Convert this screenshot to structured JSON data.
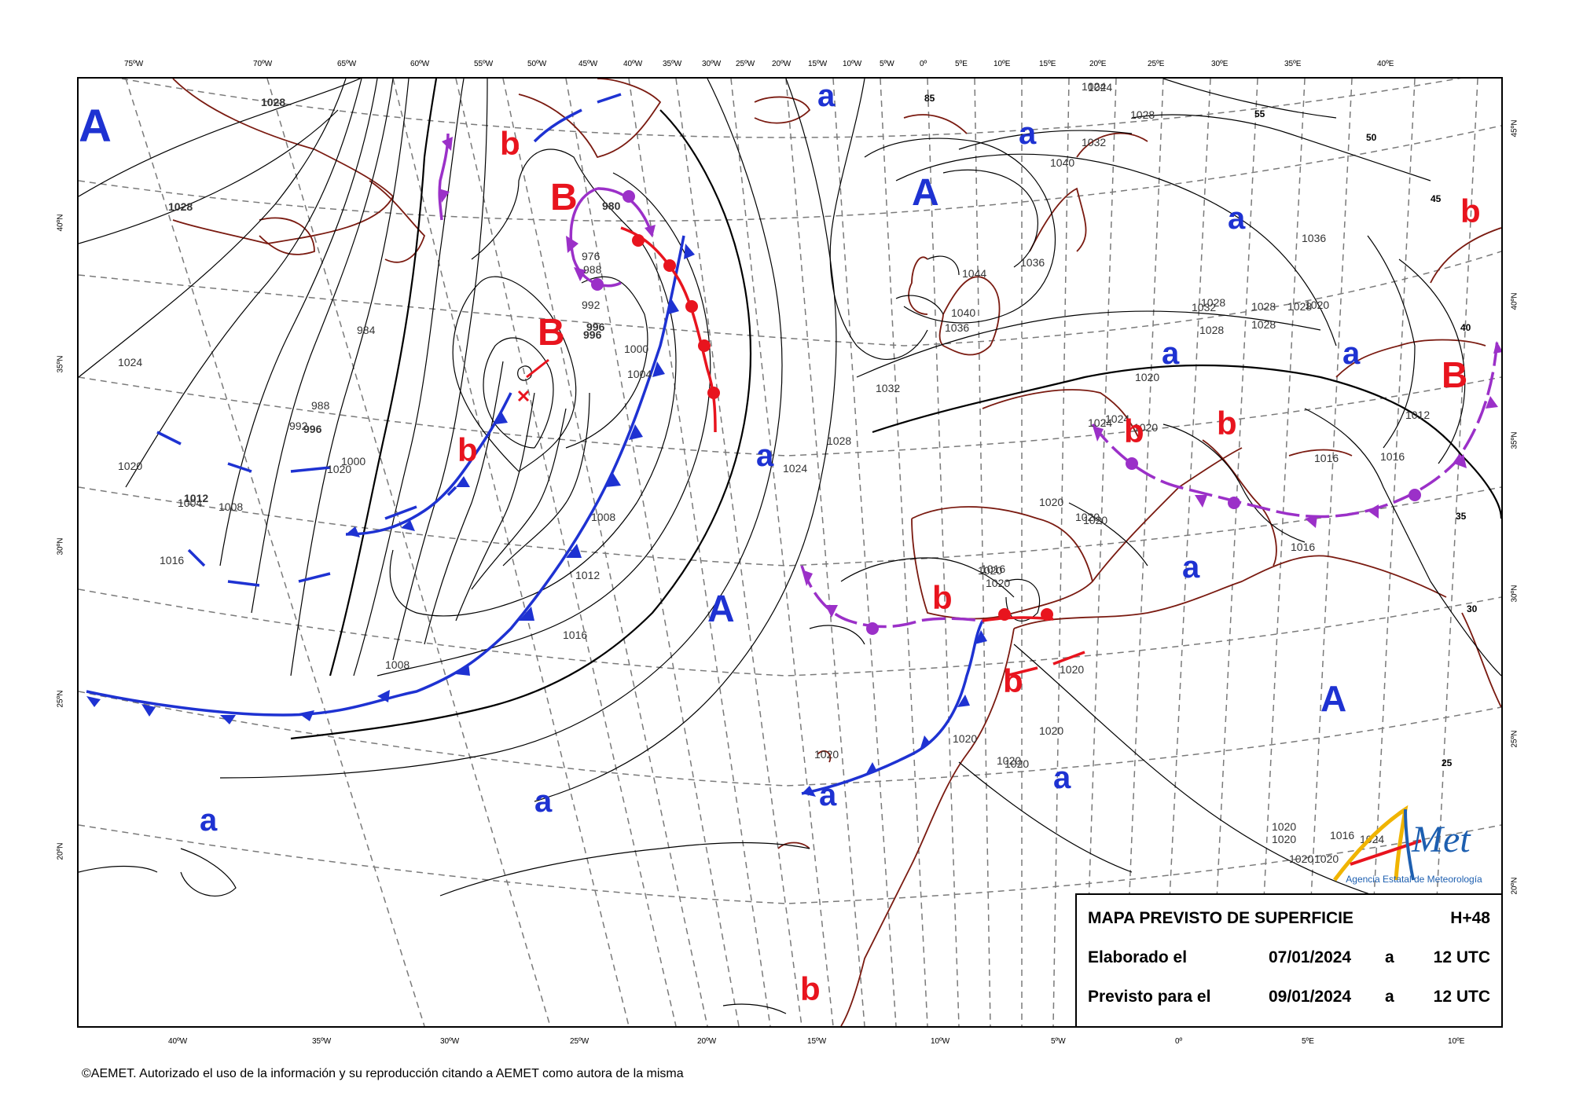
{
  "map_title": "MAPA PREVISTO DE SUPERFICIE",
  "forecast_step": "H+48",
  "rows": [
    {
      "label": "Elaborado el",
      "date": "07/01/2024",
      "sep": "a",
      "time": "12 UTC"
    },
    {
      "label": "Previsto para el",
      "date": "09/01/2024",
      "sep": "a",
      "time": "12 UTC"
    }
  ],
  "footer": "©AEMET. Autorizado el uso de la información y su reproducción citando a AEMET como autora de la misma",
  "logo": {
    "text": "AEmet",
    "subtitle": "Agencia Estatal de Meteorología"
  },
  "top_longitudes": [
    "75ºW",
    "70ºW",
    "65ºW",
    "60ºW",
    "55ºW",
    "50ºW",
    "45ºW",
    "40ºW",
    "35ºW",
    "30ºW",
    "25ºW",
    "20ºW",
    "15ºW",
    "10ºW",
    "5ºW",
    "0º",
    "5ºE",
    "10ºE",
    "15ºE",
    "20ºE",
    "25ºE",
    "30ºE",
    "35ºE",
    "40ºE"
  ],
  "bottom_longitudes": [
    "40ºW",
    "35ºW",
    "30ºW",
    "25ºW",
    "20ºW",
    "15ºW",
    "10ºW",
    "5ºW",
    "0º",
    "5ºE",
    "10ºE"
  ],
  "left_latitudes": [
    "40ºN",
    "35ºN",
    "30ºN",
    "25ºN",
    "20ºN"
  ],
  "right_latitudes": [
    "45ºN",
    "40ºN",
    "35ºN",
    "30ºN",
    "25ºN",
    "20ºN"
  ],
  "pressure_centers": [
    {
      "symbol": "A",
      "kind": "high"
    },
    {
      "symbol": "A",
      "kind": "high"
    },
    {
      "symbol": "A",
      "kind": "high"
    },
    {
      "symbol": "A",
      "kind": "high"
    },
    {
      "symbol": "a",
      "kind": "high"
    },
    {
      "symbol": "a",
      "kind": "high"
    },
    {
      "symbol": "a",
      "kind": "high"
    },
    {
      "symbol": "a",
      "kind": "high"
    },
    {
      "symbol": "a",
      "kind": "high"
    },
    {
      "symbol": "a",
      "kind": "high"
    },
    {
      "symbol": "a",
      "kind": "high"
    },
    {
      "symbol": "a",
      "kind": "high"
    },
    {
      "symbol": "a",
      "kind": "high"
    },
    {
      "symbol": "a",
      "kind": "high"
    },
    {
      "symbol": "a",
      "kind": "high"
    },
    {
      "symbol": "B",
      "kind": "low"
    },
    {
      "symbol": "B",
      "kind": "low"
    },
    {
      "symbol": "B",
      "kind": "low"
    },
    {
      "symbol": "b",
      "kind": "low"
    },
    {
      "symbol": "b",
      "kind": "low"
    },
    {
      "symbol": "b",
      "kind": "low"
    },
    {
      "symbol": "b",
      "kind": "low"
    },
    {
      "symbol": "b",
      "kind": "low"
    },
    {
      "symbol": "b",
      "kind": "low"
    },
    {
      "symbol": "b",
      "kind": "low"
    },
    {
      "symbol": "b",
      "kind": "low"
    }
  ],
  "isobar_labels": [
    "1028",
    "1028",
    "1024",
    "1020",
    "1016",
    "1012",
    "1008",
    "1004",
    "1000",
    "996",
    "996",
    "992",
    "988",
    "984",
    "980",
    "976",
    "988",
    "992",
    "996",
    "1000",
    "1004",
    "1008",
    "1012",
    "1016",
    "1008",
    "1020",
    "1024",
    "1028",
    "1032",
    "1036",
    "1040",
    "1044",
    "1036",
    "1040",
    "1024",
    "1028",
    "1032",
    "1036",
    "1032",
    "1028",
    "1028",
    "1028",
    "1028",
    "1028",
    "1020",
    "1024",
    "1024",
    "1020",
    "1020",
    "1016",
    "1016",
    "1012",
    "1016",
    "1020",
    "1020",
    "1020",
    "1016",
    "1020",
    "1020",
    "1020",
    "1020",
    "1020",
    "1020",
    "1020",
    "1020",
    "1020",
    "1020",
    "1020",
    "1016",
    "1024",
    "1020",
    "1024"
  ],
  "thickness_labels": [
    "55",
    "50",
    "45",
    "40",
    "35",
    "30",
    "25",
    "85"
  ],
  "colors": {
    "high": "#1e32d2",
    "low": "#e8141e",
    "cold_front": "#1e32d2",
    "warm_front": "#e8141e",
    "occluded": "#9b30c8",
    "coast": "#7a1a10",
    "isobar": "#000000",
    "grid": "#7a7a7a"
  }
}
